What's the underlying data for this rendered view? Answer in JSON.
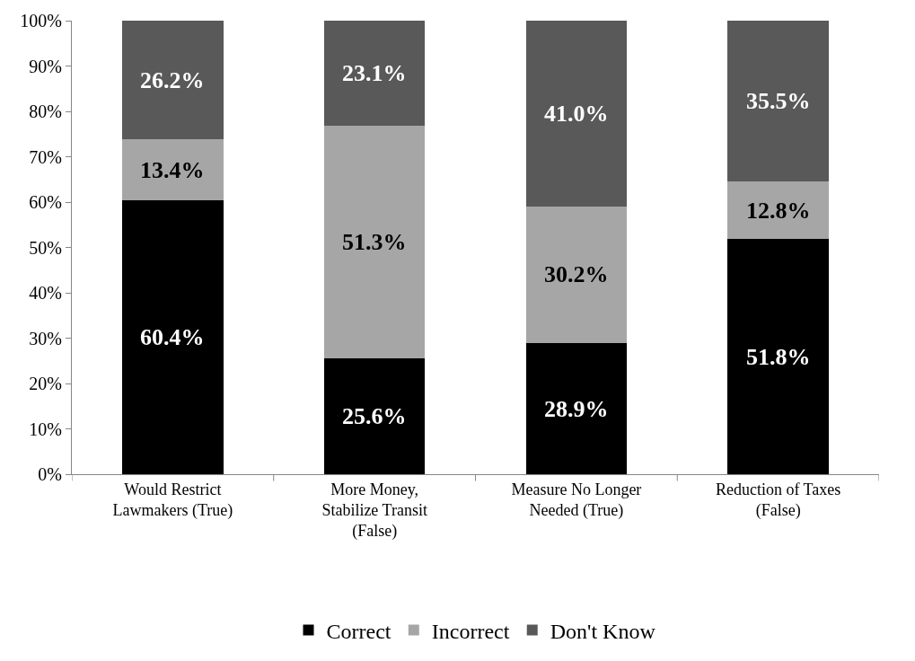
{
  "chart_data": {
    "type": "bar",
    "stacked": true,
    "categories": [
      "Would Restrict Lawmakers (True)",
      "More Money, Stabilize Transit (False)",
      "Measure No Longer Needed (True)",
      "Reduction of Taxes (False)"
    ],
    "series": [
      {
        "name": "Correct",
        "color": "#000000",
        "values": [
          60.4,
          25.6,
          28.9,
          51.8
        ],
        "value_labels": [
          "60.4%",
          "25.6%",
          "28.9%",
          "51.8%"
        ]
      },
      {
        "name": "Incorrect",
        "color": "#a6a6a6",
        "values": [
          13.4,
          51.3,
          30.2,
          12.8
        ],
        "value_labels": [
          "13.4%",
          "51.3%",
          "30.2%",
          "12.8%"
        ]
      },
      {
        "name": "Don't Know",
        "color": "#595959",
        "values": [
          26.2,
          23.1,
          41.0,
          35.5
        ],
        "value_labels": [
          "26.2%",
          "23.1%",
          "41.0%",
          "35.5%"
        ]
      }
    ],
    "ylim": [
      0,
      100
    ],
    "yticks": [
      {
        "value": 0,
        "label": "0%"
      },
      {
        "value": 10,
        "label": "10%"
      },
      {
        "value": 20,
        "label": "20%"
      },
      {
        "value": 30,
        "label": "30%"
      },
      {
        "value": 40,
        "label": "40%"
      },
      {
        "value": 50,
        "label": "50%"
      },
      {
        "value": 60,
        "label": "60%"
      },
      {
        "value": 70,
        "label": "70%"
      },
      {
        "value": 80,
        "label": "80%"
      },
      {
        "value": 90,
        "label": "90%"
      },
      {
        "value": 100,
        "label": "100%"
      }
    ],
    "grid": false,
    "legend": "bottom"
  }
}
